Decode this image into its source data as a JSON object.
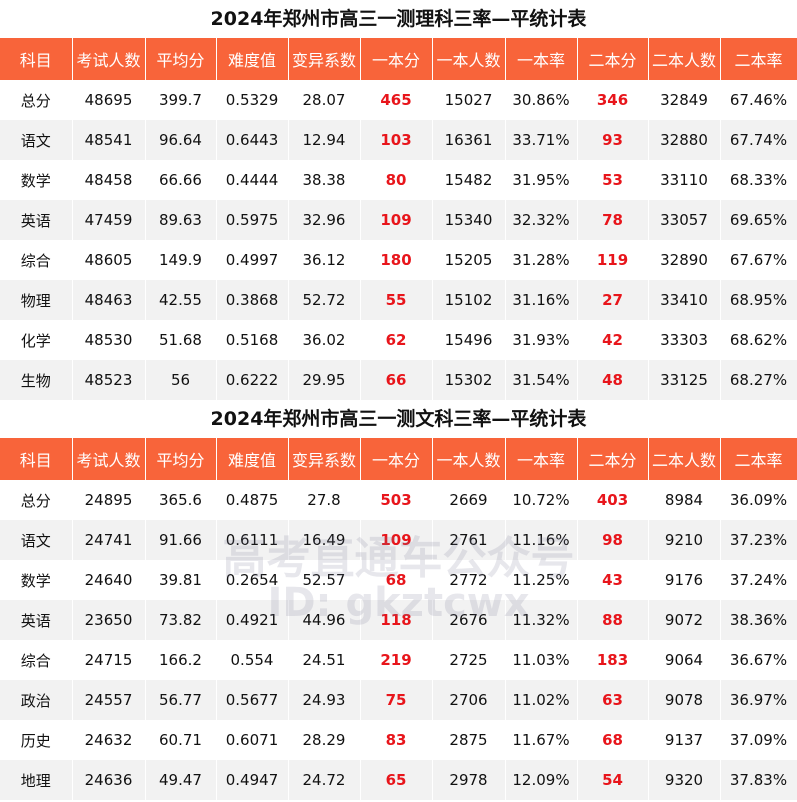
{
  "tables": [
    {
      "title": "2024年郑州市高三一测理科三率—平统计表",
      "header": [
        "科目",
        "考试人数",
        "平均分",
        "难度值",
        "变异系数",
        "一本分",
        "一本人数",
        "一本率",
        "二本分",
        "二本人数",
        "二本率"
      ],
      "rows": [
        [
          "总分",
          "48695",
          "399.7",
          "0.5329",
          "28.07",
          "465",
          "15027",
          "30.86%",
          "346",
          "32849",
          "67.46%"
        ],
        [
          "语文",
          "48541",
          "96.64",
          "0.6443",
          "12.94",
          "103",
          "16361",
          "33.71%",
          "93",
          "32880",
          "67.74%"
        ],
        [
          "数学",
          "48458",
          "66.66",
          "0.4444",
          "38.38",
          "80",
          "15482",
          "31.95%",
          "53",
          "33110",
          "68.33%"
        ],
        [
          "英语",
          "47459",
          "89.63",
          "0.5975",
          "32.96",
          "109",
          "15340",
          "32.32%",
          "78",
          "33057",
          "69.65%"
        ],
        [
          "综合",
          "48605",
          "149.9",
          "0.4997",
          "36.12",
          "180",
          "15205",
          "31.28%",
          "119",
          "32890",
          "67.67%"
        ],
        [
          "物理",
          "48463",
          "42.55",
          "0.3868",
          "52.72",
          "55",
          "15102",
          "31.16%",
          "27",
          "33410",
          "68.95%"
        ],
        [
          "化学",
          "48530",
          "51.68",
          "0.5168",
          "36.02",
          "62",
          "15496",
          "31.93%",
          "42",
          "33303",
          "68.62%"
        ],
        [
          "生物",
          "48523",
          "56",
          "0.6222",
          "29.95",
          "66",
          "15302",
          "31.54%",
          "48",
          "33125",
          "68.27%"
        ]
      ]
    },
    {
      "title": "2024年郑州市高三一测文科三率—平统计表",
      "header": [
        "科目",
        "考试人数",
        "平均分",
        "难度值",
        "变异系数",
        "一本分",
        "一本人数",
        "一本率",
        "二本分",
        "二本人数",
        "二本率"
      ],
      "rows": [
        [
          "总分",
          "24895",
          "365.6",
          "0.4875",
          "27.8",
          "503",
          "2669",
          "10.72%",
          "403",
          "8984",
          "36.09%"
        ],
        [
          "语文",
          "24741",
          "91.66",
          "0.6111",
          "16.49",
          "109",
          "2761",
          "11.16%",
          "98",
          "9210",
          "37.23%"
        ],
        [
          "数学",
          "24640",
          "39.81",
          "0.2654",
          "52.57",
          "68",
          "2772",
          "11.25%",
          "43",
          "9176",
          "37.24%"
        ],
        [
          "英语",
          "23650",
          "73.82",
          "0.4921",
          "44.96",
          "118",
          "2676",
          "11.32%",
          "88",
          "9072",
          "38.36%"
        ],
        [
          "综合",
          "24715",
          "166.2",
          "0.554",
          "24.51",
          "219",
          "2725",
          "11.03%",
          "183",
          "9064",
          "36.67%"
        ],
        [
          "政治",
          "24557",
          "56.77",
          "0.5677",
          "24.93",
          "75",
          "2706",
          "11.02%",
          "63",
          "9078",
          "36.97%"
        ],
        [
          "历史",
          "24632",
          "60.71",
          "0.6071",
          "28.29",
          "83",
          "2875",
          "11.67%",
          "68",
          "9137",
          "37.09%"
        ],
        [
          "地理",
          "24636",
          "49.47",
          "0.4947",
          "24.72",
          "65",
          "2978",
          "12.09%",
          "54",
          "9320",
          "37.83%"
        ]
      ]
    }
  ],
  "watermark": {
    "line1": "高考直通车公众号",
    "line2": "ID: gkztcwx"
  }
}
